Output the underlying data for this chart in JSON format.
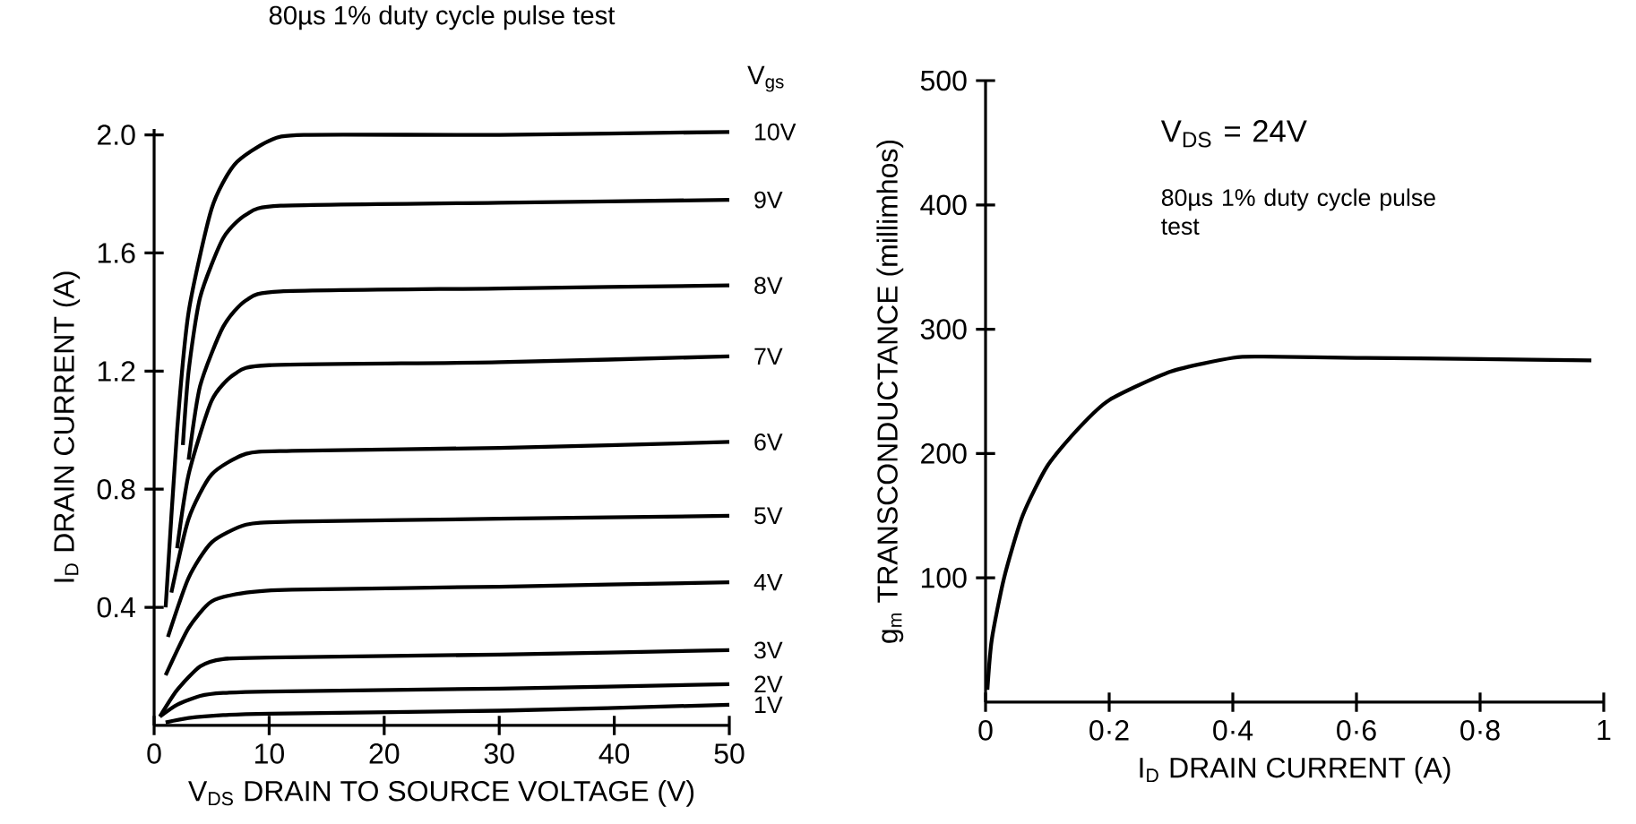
{
  "chart_data": [
    {
      "type": "line",
      "title": "80µs 1% duty cycle pulse test",
      "legend_title": "V$_{gs}$",
      "xlabel": "V$_{DS}$ DRAIN TO SOURCE VOLTAGE (V)",
      "ylabel": "I$_{D}$ DRAIN CURRENT (A)",
      "xlim": [
        0,
        50
      ],
      "ylim": [
        0,
        2.02
      ],
      "xticks": [
        0,
        10,
        20,
        30,
        40,
        50
      ],
      "yticks": [
        {
          "value": 0.4,
          "label": "0.4"
        },
        {
          "value": 0.8,
          "label": "0.8"
        },
        {
          "value": 1.2,
          "label": "1.2"
        },
        {
          "value": 1.6,
          "label": "1.6"
        },
        {
          "value": 2.0,
          "label": "2.0"
        }
      ],
      "tick_labels": "xy",
      "series": [
        {
          "name": "10V",
          "color": "#000000",
          "x": [
            1,
            2,
            3,
            5,
            7,
            10,
            13,
            30,
            50
          ],
          "values": [
            0.4,
            1.0,
            1.4,
            1.75,
            1.9,
            1.98,
            2.0,
            2.0,
            2.01
          ]
        },
        {
          "name": "9V",
          "color": "#000000",
          "x": [
            2.5,
            3,
            4,
            6,
            8,
            11,
            30,
            50
          ],
          "values": [
            0.95,
            1.2,
            1.45,
            1.65,
            1.73,
            1.76,
            1.77,
            1.78
          ]
        },
        {
          "name": "8V",
          "color": "#000000",
          "x": [
            3,
            4,
            6,
            8,
            11,
            30,
            50
          ],
          "values": [
            0.9,
            1.15,
            1.35,
            1.44,
            1.47,
            1.48,
            1.49
          ]
        },
        {
          "name": "7V",
          "color": "#000000",
          "x": [
            2,
            3,
            5,
            7,
            10,
            30,
            50
          ],
          "values": [
            0.6,
            0.85,
            1.1,
            1.19,
            1.22,
            1.23,
            1.25
          ]
        },
        {
          "name": "6V",
          "color": "#000000",
          "x": [
            1.5,
            3,
            5,
            8,
            12,
            30,
            50
          ],
          "values": [
            0.45,
            0.7,
            0.85,
            0.92,
            0.93,
            0.94,
            0.96
          ]
        },
        {
          "name": "5V",
          "color": "#000000",
          "x": [
            1.2,
            3,
            5,
            8,
            12,
            30,
            50
          ],
          "values": [
            0.3,
            0.5,
            0.62,
            0.68,
            0.69,
            0.7,
            0.71
          ]
        },
        {
          "name": "4V",
          "color": "#000000",
          "x": [
            1,
            3,
            5,
            8,
            12,
            30,
            50
          ],
          "values": [
            0.17,
            0.33,
            0.42,
            0.45,
            0.46,
            0.47,
            0.485
          ]
        },
        {
          "name": "3V",
          "color": "#000000",
          "x": [
            0.5,
            2,
            4,
            6,
            10,
            30,
            50
          ],
          "values": [
            0.03,
            0.12,
            0.2,
            0.225,
            0.23,
            0.24,
            0.255
          ]
        },
        {
          "name": "2V",
          "color": "#000000",
          "x": [
            0.5,
            2,
            4,
            6,
            10,
            30,
            50
          ],
          "values": [
            0.03,
            0.07,
            0.1,
            0.11,
            0.115,
            0.125,
            0.14
          ]
        },
        {
          "name": "1V",
          "color": "#000000",
          "x": [
            1,
            3,
            6,
            10,
            30,
            50
          ],
          "values": [
            0.01,
            0.025,
            0.035,
            0.04,
            0.05,
            0.07
          ]
        }
      ]
    },
    {
      "type": "line",
      "xlabel": "I$_{D}$ DRAIN CURRENT (A)",
      "ylabel": "g$_{m}$ TRANSCONDUCTANCE (millimhos)",
      "annotations": [
        "V$_{DS}$ = 24V",
        "80µs 1% duty cycle pulse test"
      ],
      "xlim": [
        0,
        1
      ],
      "ylim": [
        0,
        500
      ],
      "xticks": [
        0,
        {
          "value": 0.2,
          "label": "0·2"
        },
        {
          "value": 0.4,
          "label": "0·4"
        },
        {
          "value": 0.6,
          "label": "0·6"
        },
        {
          "value": 0.8,
          "label": "0·8"
        },
        1
      ],
      "yticks": [
        100,
        200,
        300,
        400,
        500
      ],
      "series": [
        {
          "color": "#000000",
          "x": [
            0.003,
            0.01,
            0.03,
            0.06,
            0.1,
            0.15,
            0.2,
            0.3,
            0.4,
            0.45,
            0.6,
            0.8,
            0.98
          ],
          "values": [
            10,
            50,
            100,
            150,
            190,
            220,
            243,
            266,
            277,
            278,
            277,
            276,
            275
          ]
        }
      ]
    }
  ]
}
